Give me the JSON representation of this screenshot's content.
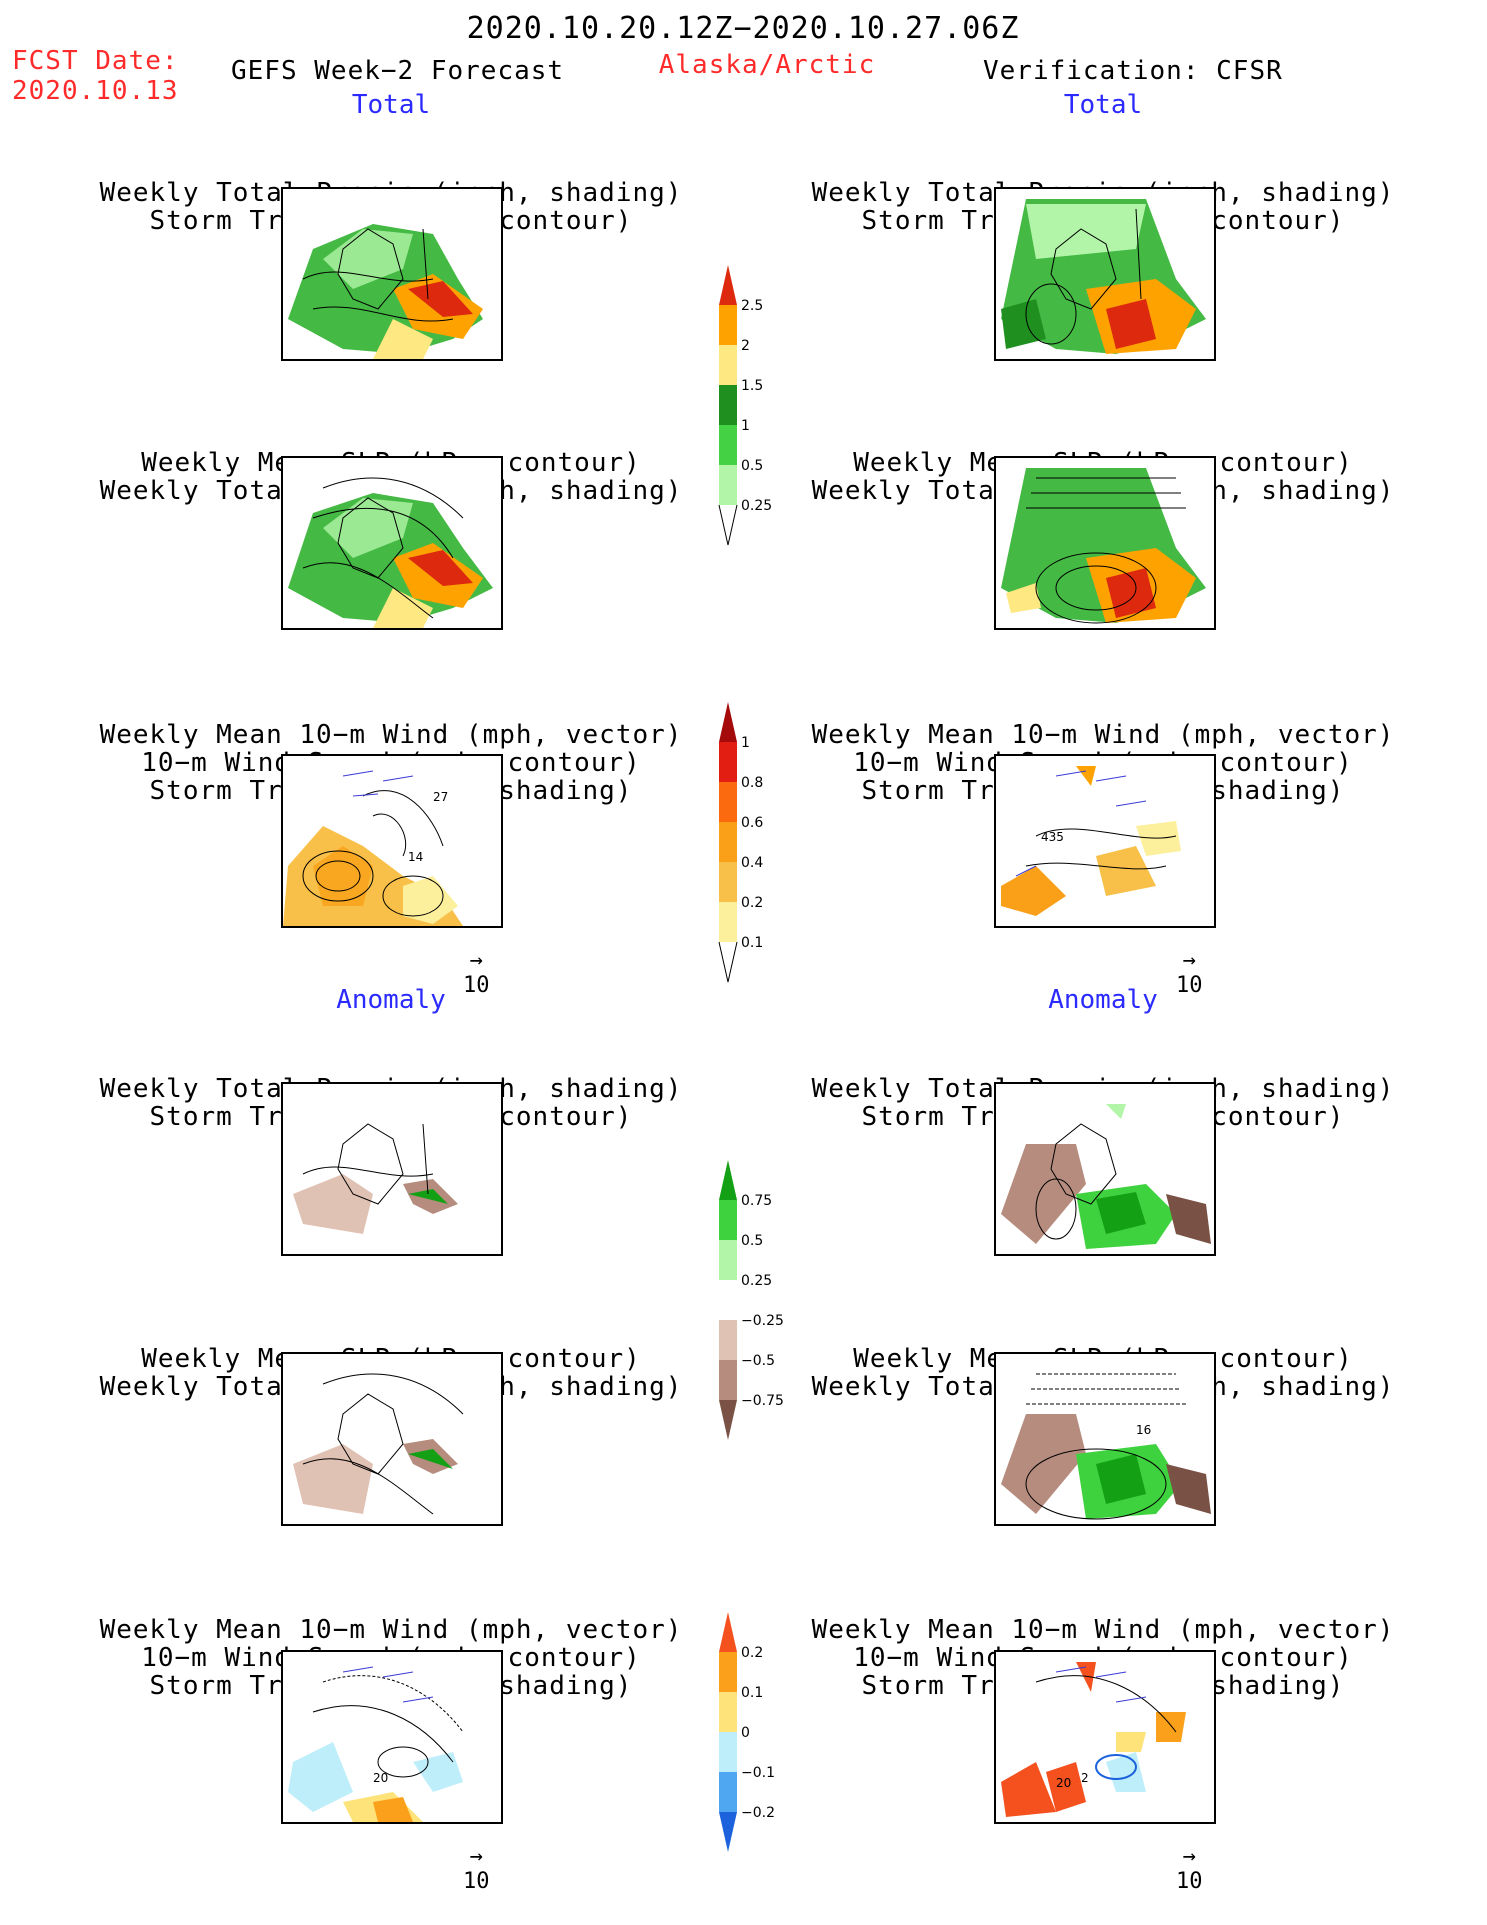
{
  "header": {
    "date_range": "2020.10.20.12Z−2020.10.27.06Z",
    "fcst_label": "FCST Date:",
    "fcst_date": "2020.10.13",
    "left_product": "GEFS Week−2 Forecast",
    "region": "Alaska/Arctic",
    "right_product": "Verification: CFSR"
  },
  "sections": {
    "total": "Total",
    "anomaly": "Anomaly"
  },
  "panel_titles": {
    "precip_track": [
      "Weekly Total Precip (inch, shading)",
      "Storm Track Density (contour)"
    ],
    "slp_precip": [
      "Weekly Mean SLP (hPa, contour)",
      "Weekly Total Precip (inch, shading)"
    ],
    "wind_track": [
      "Weekly Mean 10−m Wind (mph, vector)",
      "10−m Wind Speed (mph, contour)",
      "Storm Track Density (shading)"
    ]
  },
  "wind_reference": {
    "value": "10",
    "arrow": "→"
  },
  "contour_labels": {
    "fcst_total_wind": [
      "27",
      "14"
    ],
    "cfsr_total_wind": [
      "435"
    ],
    "fcst_anom_wind": [
      "20"
    ],
    "cfsr_anom_slp": [
      "16"
    ],
    "cfsr_anom_wind": [
      "20",
      "2"
    ]
  },
  "colorbars": {
    "precip_total": {
      "ticks": [
        "2.5",
        "2",
        "1.5",
        "1",
        "0.5",
        "0.25"
      ],
      "colors": [
        "#dd2a0f",
        "#fea200",
        "#fde882",
        "#1f8f1f",
        "#44d144",
        "#b2f5a8"
      ]
    },
    "track_total": {
      "ticks": [
        "1",
        "0.8",
        "0.6",
        "0.4",
        "0.2",
        "0.1"
      ],
      "colors": [
        "#a50b0b",
        "#e21d11",
        "#fc6a0f",
        "#f9a018",
        "#f8c048",
        "#fcf09c"
      ]
    },
    "precip_anom": {
      "ticks": [
        "0.75",
        "0.5",
        "0.25",
        "−0.25",
        "−0.5",
        "−0.75"
      ],
      "colors": [
        "#14a014",
        "#3fd23f",
        "#b2f5a8",
        "#ffffff",
        "#e0c2b4",
        "#b58c7e",
        "#7a5245"
      ]
    },
    "track_anom": {
      "ticks": [
        "0.2",
        "0.1",
        "0",
        "−0.1",
        "−0.2"
      ],
      "colors": [
        "#f4511e",
        "#fba01a",
        "#fde37a",
        "#bfeefb",
        "#4fa7f2",
        "#1b62dc"
      ]
    }
  }
}
